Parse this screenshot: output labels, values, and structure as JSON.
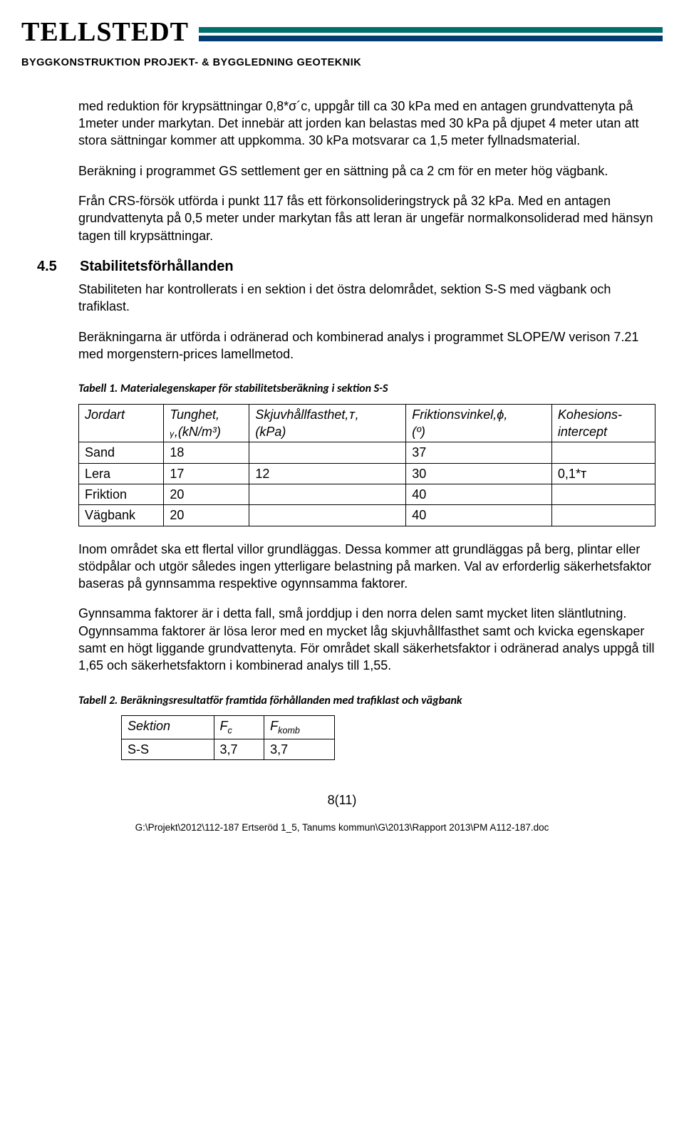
{
  "header": {
    "logo": "TELLSTEDT",
    "bar_colors": {
      "top": "#006f6c",
      "bottom": "#003a6e"
    },
    "subheader": "BYGGKONSTRUKTION  PROJEKT- & BYGGLEDNING  GEOTEKNIK"
  },
  "paragraphs": {
    "p1": "med reduktion för krypsättningar 0,8*σ´c, uppgår till ca 30 kPa med en antagen grundvattenyta på 1meter under markytan. Det innebär att jorden kan belastas med 30 kPa på djupet 4 meter utan att stora sättningar kommer att uppkomma. 30 kPa motsvarar ca 1,5 meter fyllnadsmaterial.",
    "p2": "Beräkning i programmet GS settlement ger en sättning på ca 2 cm för en meter hög vägbank.",
    "p3": "Från CRS-försök utförda i punkt 117 fås ett förkonsolideringstryck på 32 kPa. Med en antagen grundvattenyta på 0,5 meter under markytan fås att leran är ungefär normalkonsoliderad med hänsyn tagen till krypsättningar.",
    "p4": "Stabiliteten har kontrollerats i en sektion i det östra delområdet, sektion S-S med vägbank och trafiklast.",
    "p5": "Beräkningarna är utförda i odränerad och kombinerad analys i programmet SLOPE/W verison 7.21 med morgenstern-prices lamellmetod.",
    "p6": "Inom området ska ett flertal villor grundläggas. Dessa kommer att grundläggas på berg, plintar eller stödpålar och utgör således ingen ytterligare belastning på marken. Val av erforderlig säkerhetsfaktor baseras på gynnsamma respektive ogynnsamma faktorer.",
    "p7": "Gynnsamma faktorer är i detta fall, små jorddjup i den norra delen samt mycket liten släntlutning. Ogynnsamma faktorer är lösa leror med en mycket låg skjuvhållfasthet samt och kvicka egenskaper samt en högt liggande grundvattenyta. För området skall säkerhetsfaktor i odränerad analys uppgå till 1,65 och säkerhetsfaktorn i kombinerad analys till 1,55."
  },
  "section": {
    "num": "4.5",
    "title": "Stabilitetsförhållanden"
  },
  "table1": {
    "caption": "Tabell 1. Materialegenskaper för stabilitetsberäkning i sektion S-S",
    "headers": {
      "c0": "Jordart",
      "c1a": "Tunghet,",
      "c1b": "ᵧ,(kN/m³)",
      "c2a": "Skjuvhållfasthet,ᴛ,",
      "c2b": "(kPa)",
      "c3a": "Friktionsvinkel,ϕ,",
      "c3b": "(º)",
      "c4a": "Kohesions-",
      "c4b": "intercept"
    },
    "rows": [
      {
        "c0": "Sand",
        "c1": "18",
        "c2": "",
        "c3": "37",
        "c4": ""
      },
      {
        "c0": "Lera",
        "c1": "17",
        "c2": "12",
        "c3": "30",
        "c4": "0,1*ᴛ"
      },
      {
        "c0": "Friktion",
        "c1": "20",
        "c2": "",
        "c3": "40",
        "c4": ""
      },
      {
        "c0": "Vägbank",
        "c1": "20",
        "c2": "",
        "c3": "40",
        "c4": ""
      }
    ]
  },
  "table2": {
    "caption": "Tabell 2. Beräkningsresultatför framtida förhållanden med trafiklast och vägbank",
    "headers": {
      "c0": "Sektion",
      "c1": "F",
      "c1sub": "c",
      "c2": "F",
      "c2sub": "komb"
    },
    "rows": [
      {
        "c0": "S-S",
        "c1": "3,7",
        "c2": "3,7"
      }
    ]
  },
  "footer": {
    "page": "8(11)",
    "path": "G:\\Projekt\\2012\\112-187 Ertseröd 1_5, Tanums kommun\\G\\2013\\Rapport 2013\\PM A112-187.doc"
  }
}
